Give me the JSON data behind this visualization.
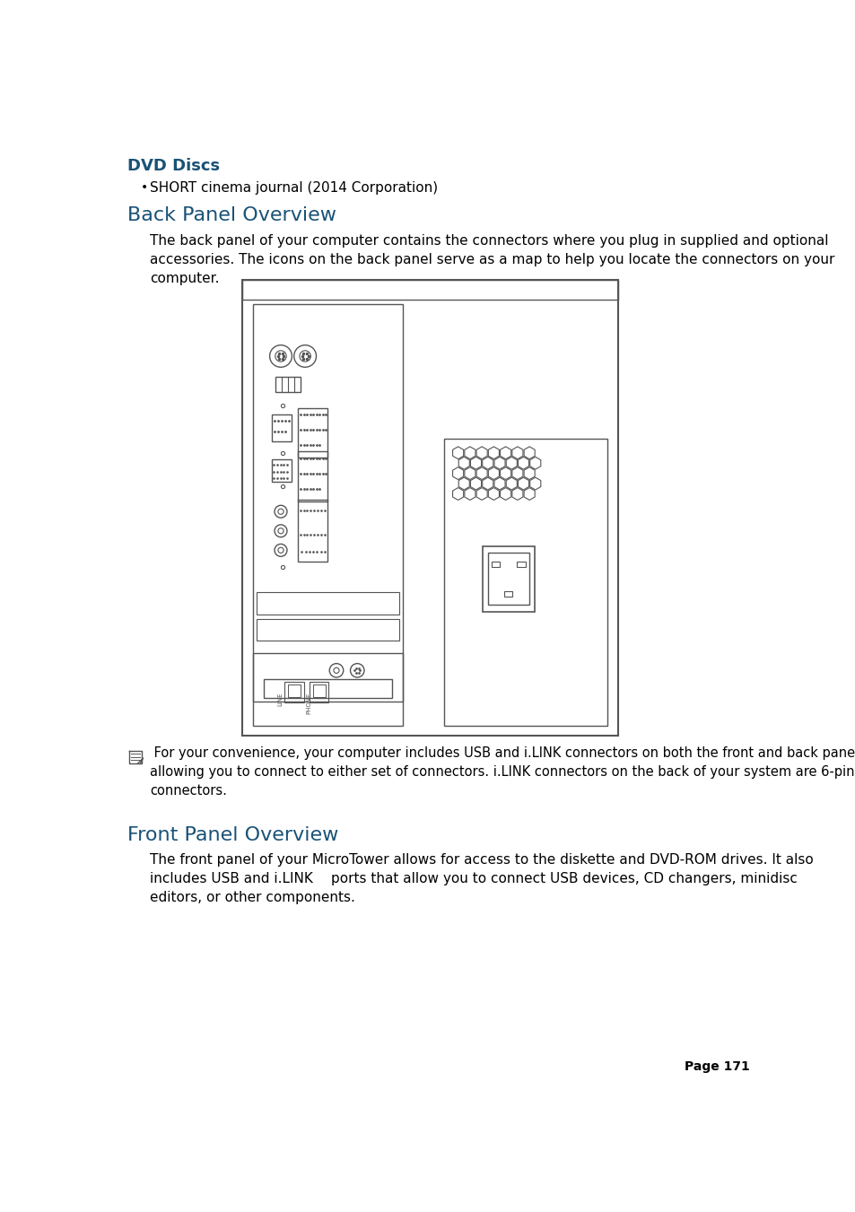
{
  "title_dvd": "DVD Discs",
  "bullet_dvd": "SHORT cinema journal (2014 Corporation)",
  "title_back": "Back Panel Overview",
  "body_back": "The back panel of your computer contains the connectors where you plug in supplied and optional\naccessories. The icons on the back panel serve as a map to help you locate the connectors on your\ncomputer.",
  "note_text": " For your convenience, your computer includes USB and i.LINK connectors on both the front and back panels,\nallowing you to connect to either set of connectors. i.LINK connectors on the back of your system are 6-pin\nconnectors.",
  "title_front": "Front Panel Overview",
  "body_front": "The front panel of your MicroTower allows for access to the diskette and DVD-ROM drives. It also\nincludes USB and i.LINK  ports that allow you to connect USB devices, CD changers, minidisc\neditors, or other components.",
  "page_text": "Page 171",
  "bg_color": "#ffffff",
  "heading_color": "#1a5276",
  "dvd_color": "#1a5276",
  "text_color": "#000000",
  "line_color": "#555555"
}
